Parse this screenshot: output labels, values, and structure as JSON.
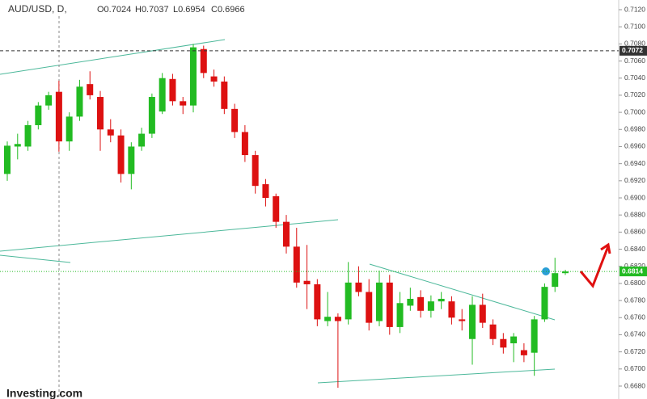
{
  "chart_data": {
    "type": "candlestick",
    "title": "AUD/USD, D,",
    "ohlc_labels": [
      "O0.7024",
      "H0.7037",
      "L0.6954",
      "C0.6966"
    ],
    "watermark": "Investing.com",
    "up_color": "#22bb22",
    "down_color": "#dd1111",
    "ylim": [
      0.668,
      0.712
    ],
    "yticks": [
      {
        "value": 0.668,
        "label": "0.6680"
      },
      {
        "value": 0.67,
        "label": "0.6700"
      },
      {
        "value": 0.672,
        "label": "0.6720"
      },
      {
        "value": 0.674,
        "label": "0.6740"
      },
      {
        "value": 0.676,
        "label": "0.6760"
      },
      {
        "value": 0.678,
        "label": "0.6780"
      },
      {
        "value": 0.68,
        "label": "0.6800"
      },
      {
        "value": 0.682,
        "label": "0.6820"
      },
      {
        "value": 0.684,
        "label": "0.6840"
      },
      {
        "value": 0.686,
        "label": "0.6860"
      },
      {
        "value": 0.688,
        "label": "0.6880"
      },
      {
        "value": 0.69,
        "label": "0.6900"
      },
      {
        "value": 0.692,
        "label": "0.6920"
      },
      {
        "value": 0.694,
        "label": "0.6940"
      },
      {
        "value": 0.696,
        "label": "0.6960"
      },
      {
        "value": 0.698,
        "label": "0.6980"
      },
      {
        "value": 0.7,
        "label": "0.7000"
      },
      {
        "value": 0.702,
        "label": "0.7020"
      },
      {
        "value": 0.704,
        "label": "0.7040"
      },
      {
        "value": 0.706,
        "label": "0.7060"
      },
      {
        "value": 0.708,
        "label": "0.7080"
      },
      {
        "value": 0.71,
        "label": "0.7100"
      },
      {
        "value": 0.712,
        "label": "0.7120"
      }
    ],
    "price_labels": [
      {
        "value": 0.7072,
        "label": "0.7072",
        "color": "#333333"
      },
      {
        "value": 0.6814,
        "label": "0.6814",
        "color": "#22bb22"
      }
    ],
    "open": [
      0.6928,
      0.696,
      0.696,
      0.6985,
      0.7008,
      0.7024,
      0.6966,
      0.6995,
      0.7033,
      0.7018,
      0.698,
      0.6973,
      0.6928,
      0.696,
      0.6975,
      0.7001,
      0.7039,
      0.7013,
      0.7008,
      0.7074,
      0.7042,
      0.7036,
      0.7004,
      0.6977,
      0.695,
      0.6916,
      0.6902,
      0.6872,
      0.6843,
      0.6803,
      0.6799,
      0.6756,
      0.6761,
      0.6758,
      0.6801,
      0.679,
      0.6756,
      0.6801,
      0.6749,
      0.6774,
      0.6784,
      0.6768,
      0.6779,
      0.6779,
      0.6758,
      0.6735,
      0.6775,
      0.6752,
      0.6735,
      0.673,
      0.6722,
      0.6719,
      0.6758,
      0.6796,
      0.6812
    ],
    "high": [
      0.6966,
      0.6975,
      0.699,
      0.7012,
      0.7024,
      0.7037,
      0.7,
      0.7038,
      0.7048,
      0.7025,
      0.6992,
      0.698,
      0.6965,
      0.6982,
      0.7022,
      0.7046,
      0.7045,
      0.7018,
      0.708,
      0.7078,
      0.705,
      0.7042,
      0.701,
      0.6985,
      0.6955,
      0.6922,
      0.6905,
      0.688,
      0.6865,
      0.6845,
      0.6805,
      0.679,
      0.6765,
      0.6825,
      0.682,
      0.6805,
      0.6815,
      0.681,
      0.679,
      0.6795,
      0.6792,
      0.6786,
      0.679,
      0.6785,
      0.677,
      0.6785,
      0.6788,
      0.6758,
      0.6742,
      0.6742,
      0.673,
      0.6762,
      0.68,
      0.683,
      0.6816
    ],
    "low": [
      0.692,
      0.6945,
      0.6955,
      0.698,
      0.7003,
      0.6954,
      0.6955,
      0.699,
      0.7015,
      0.6955,
      0.6965,
      0.6918,
      0.691,
      0.6955,
      0.697,
      0.6998,
      0.7008,
      0.6998,
      0.7,
      0.704,
      0.703,
      0.6998,
      0.697,
      0.6942,
      0.6905,
      0.689,
      0.6865,
      0.6835,
      0.6795,
      0.677,
      0.675,
      0.675,
      0.6678,
      0.6752,
      0.6785,
      0.6745,
      0.675,
      0.674,
      0.6742,
      0.6768,
      0.676,
      0.676,
      0.677,
      0.6752,
      0.6745,
      0.6705,
      0.6748,
      0.6728,
      0.6718,
      0.6708,
      0.6708,
      0.6692,
      0.6755,
      0.679,
      0.681
    ],
    "close": [
      0.6961,
      0.6963,
      0.6985,
      0.7008,
      0.702,
      0.6966,
      0.6995,
      0.703,
      0.702,
      0.698,
      0.6973,
      0.6928,
      0.696,
      0.6975,
      0.7018,
      0.704,
      0.7013,
      0.7008,
      0.7076,
      0.7046,
      0.7036,
      0.7004,
      0.6977,
      0.695,
      0.6914,
      0.69,
      0.6872,
      0.6843,
      0.6801,
      0.6799,
      0.6758,
      0.6761,
      0.6756,
      0.6801,
      0.679,
      0.6754,
      0.6801,
      0.6749,
      0.6777,
      0.6782,
      0.6768,
      0.6779,
      0.6782,
      0.676,
      0.6756,
      0.6775,
      0.6754,
      0.6735,
      0.6725,
      0.6738,
      0.6716,
      0.6758,
      0.6796,
      0.6812,
      0.6814
    ]
  }
}
